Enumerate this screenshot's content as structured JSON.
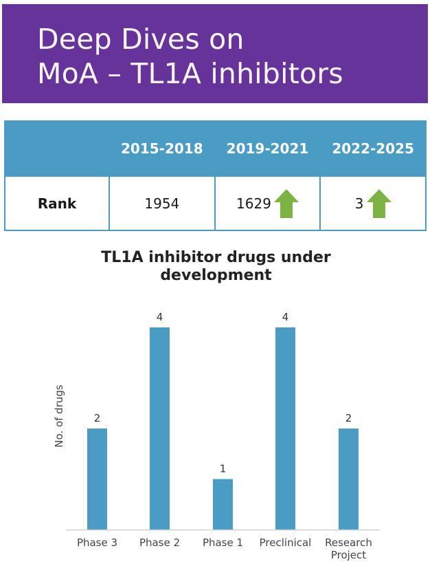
{
  "banner": {
    "title_line1": "Deep Dives on",
    "title_line2": "MoA – TL1A inhibitors",
    "bg_color": "#65339a"
  },
  "rank_table": {
    "headers": [
      "",
      "2015-2018",
      "2019-2021",
      "2022-2025"
    ],
    "row": {
      "label": "Rank",
      "values": [
        {
          "value": "1954",
          "trend": null
        },
        {
          "value": "1629",
          "trend": "up-arrow-icon"
        },
        {
          "value": "3",
          "trend": "up-arrow-icon"
        }
      ]
    },
    "header_color": "#4a9cc5",
    "trend_color": "#7cb342"
  },
  "chart_data": {
    "type": "bar",
    "title": "TL1A inhibitor drugs under development",
    "title_lines": [
      "TL1A inhibitor drugs under",
      "development"
    ],
    "xlabel": "",
    "ylabel": "No. of drugs",
    "categories": [
      "Phase 3",
      "Phase 2",
      "Phase 1",
      "Preclinical",
      "Research Project"
    ],
    "category_lines": [
      [
        "Phase 3"
      ],
      [
        "Phase 2"
      ],
      [
        "Phase 1"
      ],
      [
        "Preclinical"
      ],
      [
        "Research",
        "Project"
      ]
    ],
    "values": [
      2,
      4,
      1,
      4,
      2
    ],
    "data_labels": [
      "2",
      "4",
      "1",
      "4",
      "2"
    ],
    "ylim": [
      0,
      4
    ],
    "grid": false,
    "legend": "none",
    "bar_color": "#4a9cc5"
  }
}
